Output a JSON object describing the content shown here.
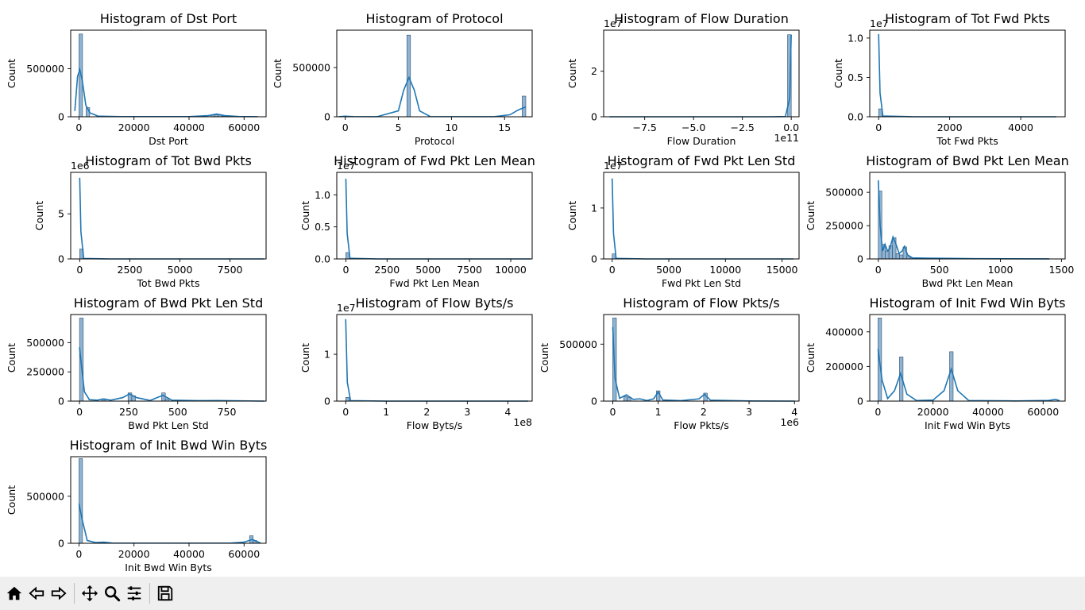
{
  "colors": {
    "bar": "#1f77b4",
    "bar_fill": "#8fb3d3",
    "bar_edge": "#30516b",
    "kde": "#1f77b4",
    "toolbar_bg": "#efefef"
  },
  "toolbar": {
    "icons": [
      "home-icon",
      "back-icon",
      "forward-icon",
      "pan-icon",
      "zoom-icon",
      "configure-subplots-icon",
      "save-icon"
    ]
  },
  "chart_data": [
    {
      "type": "bar",
      "title": "Histogram of Dst Port",
      "xlabel": "Dst Port",
      "ylabel": "Count",
      "xlim": [
        -3000,
        68000
      ],
      "ylim": [
        0,
        900000
      ],
      "xticks": [
        0,
        20000,
        40000,
        60000
      ],
      "xtick_labels": [
        "0",
        "20000",
        "40000",
        "60000"
      ],
      "yticks": [
        0,
        500000
      ],
      "ytick_labels": [
        "0",
        "500000"
      ],
      "offset_label": "",
      "bins": [
        [
          0,
          1300,
          860000
        ],
        [
          2600,
          3900,
          95000
        ],
        [
          48000,
          49300,
          20000
        ],
        [
          49300,
          50600,
          20000
        ],
        [
          50600,
          51900,
          18000
        ],
        [
          52000,
          53300,
          8000
        ],
        [
          62000,
          63300,
          4000
        ]
      ],
      "kde": [
        [
          -1500,
          60000
        ],
        [
          -500,
          420000
        ],
        [
          300,
          490000
        ],
        [
          1200,
          380000
        ],
        [
          2500,
          120000
        ],
        [
          4000,
          40000
        ],
        [
          7000,
          6000
        ],
        [
          15000,
          2000
        ],
        [
          40000,
          2000
        ],
        [
          47000,
          12000
        ],
        [
          50000,
          28000
        ],
        [
          53000,
          12000
        ],
        [
          58000,
          3000
        ],
        [
          65000,
          1000
        ]
      ]
    },
    {
      "type": "bar",
      "title": "Histogram of Protocol",
      "xlabel": "Protocol",
      "ylabel": "Count",
      "xlim": [
        -0.8,
        17.6
      ],
      "ylim": [
        0,
        880000
      ],
      "xticks": [
        0,
        5,
        10,
        15
      ],
      "xtick_labels": [
        "0",
        "5",
        "10",
        "15"
      ],
      "yticks": [
        0,
        500000
      ],
      "ytick_labels": [
        "0",
        "500000"
      ],
      "offset_label": "",
      "bins": [
        [
          -0.17,
          0.17,
          8000
        ],
        [
          5.8,
          6.14,
          830000
        ],
        [
          16.66,
          17,
          210000
        ]
      ],
      "kde": [
        [
          -0.6,
          2000
        ],
        [
          0,
          5000
        ],
        [
          0.8,
          2000
        ],
        [
          3,
          1000
        ],
        [
          5,
          60000
        ],
        [
          5.5,
          270000
        ],
        [
          6,
          400000
        ],
        [
          6.5,
          270000
        ],
        [
          7,
          60000
        ],
        [
          8,
          2000
        ],
        [
          14,
          1000
        ],
        [
          15.5,
          20000
        ],
        [
          16.3,
          70000
        ],
        [
          17,
          100000
        ]
      ]
    },
    {
      "type": "bar",
      "title": "Histogram of Flow Duration",
      "xlabel": "Flow Duration",
      "ylabel": "Count",
      "xlim": [
        -9.6,
        0.4
      ],
      "ylim": [
        0,
        3.8
      ],
      "xticks": [
        -7.5,
        -5.0,
        -2.5,
        0.0
      ],
      "xtick_labels": [
        "−7.5",
        "−5.0",
        "−2.5",
        "0.0"
      ],
      "yticks": [
        0,
        2
      ],
      "ytick_labels": [
        "0",
        "2"
      ],
      "offset_label": "1e7",
      "x_offset_label": "1e11",
      "bins": [
        [
          -0.19,
          0,
          3.6
        ]
      ],
      "kde": [
        [
          -9.3,
          0
        ],
        [
          -1,
          0
        ],
        [
          -0.3,
          0.01
        ],
        [
          -0.08,
          0.8
        ],
        [
          0,
          3.6
        ]
      ]
    },
    {
      "type": "bar",
      "title": "Histogram of Tot Fwd Pkts",
      "xlabel": "Tot Fwd Pkts",
      "ylabel": "Count",
      "xlim": [
        -250,
        5250
      ],
      "ylim": [
        0,
        1.1
      ],
      "xticks": [
        0,
        2000,
        4000
      ],
      "xtick_labels": [
        "0",
        "2000",
        "4000"
      ],
      "yticks": [
        0,
        0.5,
        1.0
      ],
      "ytick_labels": [
        "0.0",
        "0.5",
        "1.0"
      ],
      "offset_label": "1e7",
      "bins": [
        [
          0,
          100,
          0.1
        ]
      ],
      "kde": [
        [
          0,
          1.05
        ],
        [
          40,
          0.3
        ],
        [
          120,
          0.01
        ],
        [
          1000,
          0
        ],
        [
          5000,
          0
        ]
      ]
    },
    {
      "type": "bar",
      "title": "Histogram of Tot Bwd Pkts",
      "xlabel": "Tot Bwd Pkts",
      "ylabel": "Count",
      "xlim": [
        -450,
        9300
      ],
      "ylim": [
        0,
        9.6
      ],
      "xticks": [
        0,
        2500,
        5000,
        7500
      ],
      "xtick_labels": [
        "0",
        "2500",
        "5000",
        "7500"
      ],
      "yticks": [
        0,
        5
      ],
      "ytick_labels": [
        "0",
        "5"
      ],
      "offset_label": "1e6",
      "bins": [
        [
          0,
          180,
          1.1
        ]
      ],
      "kde": [
        [
          0,
          9.0
        ],
        [
          60,
          3
        ],
        [
          200,
          0.05
        ],
        [
          1500,
          0
        ],
        [
          9200,
          0
        ]
      ]
    },
    {
      "type": "bar",
      "title": "Histogram of Fwd Pkt Len Mean",
      "xlabel": "Fwd Pkt Len Mean",
      "ylabel": "Count",
      "xlim": [
        -550,
        11300
      ],
      "ylim": [
        0,
        1.35
      ],
      "xticks": [
        0,
        2500,
        5000,
        7500,
        10000
      ],
      "xtick_labels": [
        "0",
        "2500",
        "5000",
        "7500",
        "10000"
      ],
      "yticks": [
        0,
        0.5,
        1.0
      ],
      "ytick_labels": [
        "0.0",
        "0.5",
        "1.0"
      ],
      "offset_label": "1e7",
      "bins": [
        [
          0,
          220,
          0.1
        ]
      ],
      "kde": [
        [
          0,
          1.25
        ],
        [
          80,
          0.4
        ],
        [
          250,
          0.01
        ],
        [
          2000,
          0
        ],
        [
          11200,
          0
        ]
      ]
    },
    {
      "type": "bar",
      "title": "Histogram of Fwd Pkt Len Std",
      "xlabel": "Fwd Pkt Len Std",
      "ylabel": "Count",
      "xlim": [
        -750,
        16500
      ],
      "ylim": [
        0,
        1.7
      ],
      "xticks": [
        0,
        5000,
        10000,
        15000
      ],
      "xtick_labels": [
        "0",
        "5000",
        "10000",
        "15000"
      ],
      "yticks": [
        0,
        1
      ],
      "ytick_labels": [
        "0",
        "1"
      ],
      "offset_label": "1e7",
      "bins": [
        [
          0,
          310,
          0.1
        ]
      ],
      "kde": [
        [
          0,
          1.58
        ],
        [
          120,
          0.5
        ],
        [
          350,
          0.01
        ],
        [
          3000,
          0
        ],
        [
          16000,
          0
        ]
      ]
    },
    {
      "type": "bar",
      "title": "Histogram of Bwd Pkt Len Mean",
      "xlabel": "Bwd Pkt Len Mean",
      "ylabel": "Count",
      "xlim": [
        -70,
        1530
      ],
      "ylim": [
        0,
        650000
      ],
      "xticks": [
        0,
        500,
        1000,
        1500
      ],
      "xtick_labels": [
        "0",
        "500",
        "1000",
        "1500"
      ],
      "yticks": [
        0,
        250000,
        500000
      ],
      "ytick_labels": [
        "0",
        "250000",
        "500000"
      ],
      "offset_label": "",
      "bins": [
        [
          0,
          29,
          510000
        ],
        [
          29,
          58,
          110000
        ],
        [
          58,
          87,
          60000
        ],
        [
          87,
          116,
          100000
        ],
        [
          116,
          145,
          160000
        ],
        [
          145,
          174,
          40000
        ],
        [
          174,
          203,
          30000
        ],
        [
          203,
          232,
          90000
        ],
        [
          232,
          261,
          20000
        ],
        [
          261,
          290,
          10000
        ],
        [
          290,
          319,
          6000
        ],
        [
          400,
          429,
          4000
        ],
        [
          600,
          629,
          3000
        ]
      ],
      "kde": [
        [
          0,
          590000
        ],
        [
          15,
          250000
        ],
        [
          35,
          60000
        ],
        [
          55,
          110000
        ],
        [
          75,
          60000
        ],
        [
          95,
          80000
        ],
        [
          120,
          165000
        ],
        [
          145,
          110000
        ],
        [
          170,
          40000
        ],
        [
          195,
          60000
        ],
        [
          215,
          95000
        ],
        [
          240,
          30000
        ],
        [
          280,
          8000
        ],
        [
          400,
          6000
        ],
        [
          600,
          4000
        ],
        [
          800,
          2000
        ],
        [
          1400,
          500
        ]
      ]
    },
    {
      "type": "bar",
      "title": "Histogram of Bwd Pkt Len Std",
      "xlabel": "Bwd Pkt Len Std",
      "ylabel": "Count",
      "xlim": [
        -45,
        950
      ],
      "ylim": [
        0,
        740000
      ],
      "xticks": [
        0,
        250,
        500,
        750
      ],
      "xtick_labels": [
        "0",
        "250",
        "500",
        "750"
      ],
      "yticks": [
        0,
        250000,
        500000
      ],
      "ytick_labels": [
        "0",
        "250000",
        "500000"
      ],
      "offset_label": "",
      "bins": [
        [
          0,
          19,
          710000
        ],
        [
          114,
          133,
          20000
        ],
        [
          247,
          266,
          70000
        ],
        [
          266,
          285,
          45000
        ],
        [
          418,
          437,
          70000
        ],
        [
          437,
          456,
          20000
        ]
      ],
      "kde": [
        [
          0,
          460000
        ],
        [
          10,
          300000
        ],
        [
          25,
          80000
        ],
        [
          50,
          12000
        ],
        [
          90,
          8000
        ],
        [
          120,
          18000
        ],
        [
          160,
          8000
        ],
        [
          220,
          30000
        ],
        [
          255,
          62000
        ],
        [
          290,
          30000
        ],
        [
          360,
          6000
        ],
        [
          425,
          50000
        ],
        [
          470,
          8000
        ],
        [
          600,
          4000
        ],
        [
          700,
          5000
        ],
        [
          940,
          0
        ]
      ]
    },
    {
      "type": "bar",
      "title": "Histogram of Flow Byts/s",
      "xlabel": "Flow Byts/s",
      "ylabel": "Count",
      "xlim": [
        -0.22,
        4.6
      ],
      "ylim": [
        0,
        1.85
      ],
      "xticks": [
        0,
        1,
        2,
        3,
        4
      ],
      "xtick_labels": [
        "0",
        "1",
        "2",
        "3",
        "4"
      ],
      "yticks": [
        0,
        1
      ],
      "ytick_labels": [
        "0",
        "1"
      ],
      "offset_label": "1e7",
      "x_offset_label": "1e8",
      "bins": [
        [
          0,
          0.09,
          0.08
        ]
      ],
      "kde": [
        [
          0,
          1.75
        ],
        [
          0.04,
          0.4
        ],
        [
          0.12,
          0.01
        ],
        [
          1,
          0
        ],
        [
          4.5,
          0
        ]
      ]
    },
    {
      "type": "bar",
      "title": "Histogram of Flow Pkts/s",
      "xlabel": "Flow Pkts/s",
      "ylabel": "Count",
      "xlim": [
        -0.2,
        4.1
      ],
      "ylim": [
        0,
        760000
      ],
      "xticks": [
        0,
        1,
        2,
        3,
        4
      ],
      "xtick_labels": [
        "0",
        "1",
        "2",
        "3",
        "4"
      ],
      "yticks": [
        0,
        500000
      ],
      "ytick_labels": [
        "0",
        "500000"
      ],
      "offset_label": "",
      "x_offset_label": "1e6",
      "bins": [
        [
          0,
          0.08,
          730000
        ],
        [
          0.24,
          0.32,
          40000
        ],
        [
          0.32,
          0.4,
          30000
        ],
        [
          0.96,
          1.04,
          90000
        ],
        [
          2.0,
          2.08,
          70000
        ]
      ],
      "kde": [
        [
          0,
          650000
        ],
        [
          0.05,
          200000
        ],
        [
          0.15,
          25000
        ],
        [
          0.3,
          55000
        ],
        [
          0.45,
          15000
        ],
        [
          0.6,
          20000
        ],
        [
          0.75,
          5000
        ],
        [
          0.9,
          20000
        ],
        [
          1.0,
          80000
        ],
        [
          1.1,
          10000
        ],
        [
          1.5,
          4000
        ],
        [
          1.9,
          20000
        ],
        [
          2.02,
          60000
        ],
        [
          2.15,
          8000
        ],
        [
          3,
          1000
        ],
        [
          4,
          0
        ]
      ]
    },
    {
      "type": "bar",
      "title": "Histogram of Init Fwd Win Byts",
      "xlabel": "Init Fwd Win Byts",
      "ylabel": "Count",
      "xlim": [
        -3000,
        68000
      ],
      "ylim": [
        0,
        500000
      ],
      "xticks": [
        0,
        20000,
        40000,
        60000
      ],
      "xtick_labels": [
        "0",
        "20000",
        "40000",
        "60000"
      ],
      "yticks": [
        0,
        200000,
        400000
      ],
      "ytick_labels": [
        "0",
        "200000",
        "400000"
      ],
      "offset_label": "",
      "bins": [
        [
          0,
          1300,
          480000
        ],
        [
          7800,
          9100,
          255000
        ],
        [
          26000,
          27300,
          285000
        ]
      ],
      "kde": [
        [
          0,
          300000
        ],
        [
          1500,
          120000
        ],
        [
          3500,
          15000
        ],
        [
          6000,
          60000
        ],
        [
          8200,
          160000
        ],
        [
          10500,
          40000
        ],
        [
          14000,
          3000
        ],
        [
          20000,
          6000
        ],
        [
          24000,
          60000
        ],
        [
          26600,
          185000
        ],
        [
          29000,
          60000
        ],
        [
          33000,
          3000
        ],
        [
          50000,
          1000
        ],
        [
          62000,
          4000
        ],
        [
          64500,
          10000
        ],
        [
          66000,
          3000
        ]
      ]
    },
    {
      "type": "bar",
      "title": "Histogram of Init Bwd Win Byts",
      "xlabel": "Init Bwd Win Byts",
      "ylabel": "Count",
      "xlim": [
        -3000,
        68000
      ],
      "ylim": [
        0,
        920000
      ],
      "xticks": [
        0,
        20000,
        40000,
        60000
      ],
      "xtick_labels": [
        "0",
        "20000",
        "40000",
        "60000"
      ],
      "yticks": [
        0,
        500000
      ],
      "ytick_labels": [
        "0",
        "500000"
      ],
      "offset_label": "",
      "bins": [
        [
          0,
          1300,
          900000
        ],
        [
          62000,
          63300,
          80000
        ],
        [
          63300,
          64600,
          30000
        ]
      ],
      "kde": [
        [
          0,
          420000
        ],
        [
          1200,
          250000
        ],
        [
          3000,
          30000
        ],
        [
          6000,
          8000
        ],
        [
          9000,
          12000
        ],
        [
          12000,
          3000
        ],
        [
          30000,
          2000
        ],
        [
          55000,
          2000
        ],
        [
          60000,
          12000
        ],
        [
          63000,
          40000
        ],
        [
          65000,
          15000
        ],
        [
          66000,
          3000
        ]
      ]
    }
  ]
}
